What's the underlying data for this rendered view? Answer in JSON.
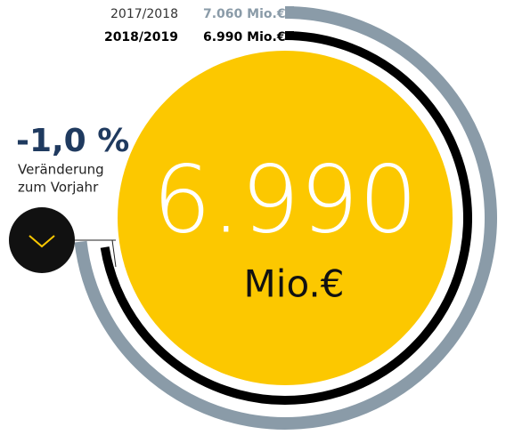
{
  "chart_data": {
    "type": "radial_bar",
    "series": [
      {
        "name": "2017/2018",
        "color": "#8a9ba8",
        "values": [
          7060
        ],
        "value_labels": [
          "7.060 Mio.€"
        ]
      },
      {
        "name": "2018/2019",
        "color": "#000000",
        "values": [
          6990
        ],
        "value_labels": [
          "6.990 Mio.€"
        ]
      }
    ],
    "rlim": [
      0,
      9650
    ],
    "center_label": "6.990",
    "center_unit": "Mio.€",
    "change": {
      "value": -1.0,
      "label": "-1,0 %"
    },
    "change_text": [
      "Veränderung",
      "zum Vorjahr"
    ],
    "circle_color": "#fcc800"
  }
}
